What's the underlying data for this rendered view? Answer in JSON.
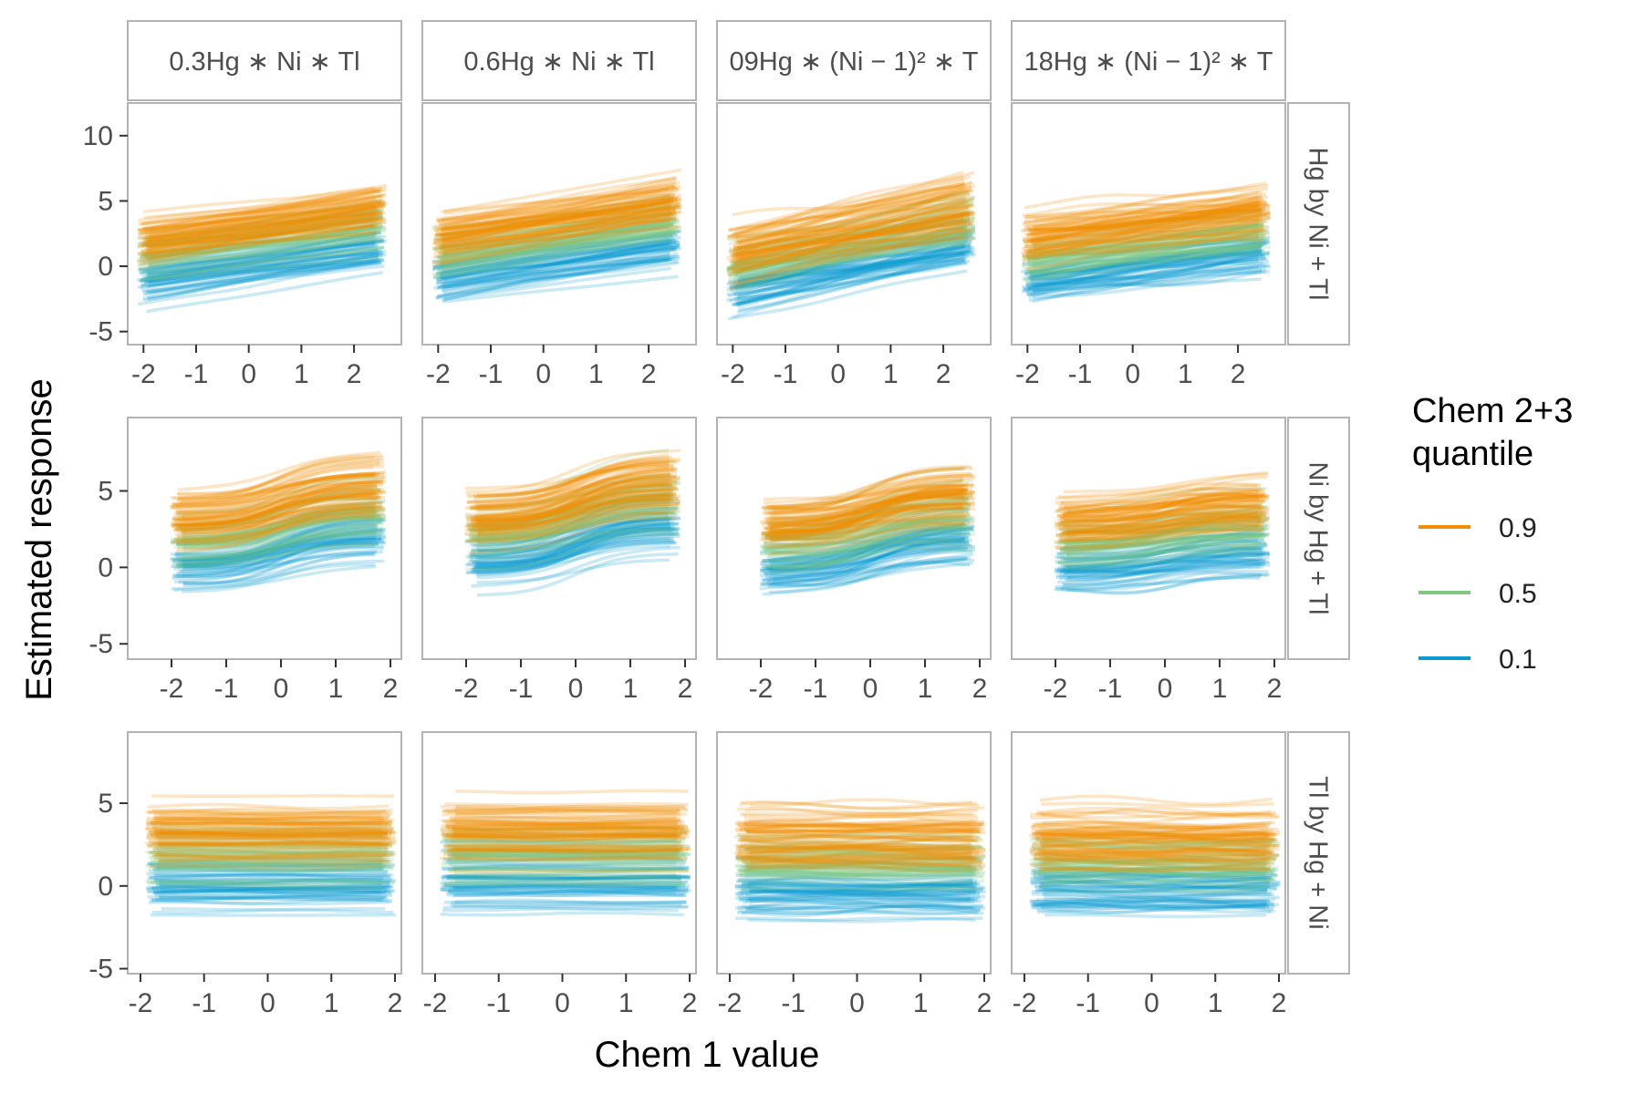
{
  "chart_data": {
    "type": "line",
    "xlabel": "Chem 1 value",
    "ylabel": "Estimated response",
    "column_strips": [
      "0.3Hg ∗ Ni ∗ Tl",
      "0.6Hg ∗ Ni ∗ Tl",
      "09Hg ∗ (Ni − 1)² ∗ T",
      "18Hg ∗ (Ni − 1)² ∗ T"
    ],
    "row_strips": [
      "Hg by Ni + Tl",
      "Ni by Hg + Tl",
      "Tl by Hg + Ni"
    ],
    "legend": {
      "title_lines": [
        "Chem 2+3",
        "quantile"
      ],
      "position": "right",
      "entries": [
        {
          "label": "0.9",
          "color": "#f28e00"
        },
        {
          "label": "0.5",
          "color": "#7ec97e"
        },
        {
          "label": "0.1",
          "color": "#0a9ad1"
        }
      ]
    },
    "rows": [
      {
        "xlim": [
          -2.3,
          2.9
        ],
        "ylim": [
          -6,
          12.5
        ],
        "xticks": [
          -2,
          -1,
          0,
          1,
          2
        ],
        "yticks": [
          -5,
          0,
          5,
          10
        ],
        "x_range": [
          -2.0,
          2.5
        ],
        "slope": [
          0.55,
          0.6,
          0.8,
          0.5
        ],
        "shape": "linear"
      },
      {
        "xlim": [
          -2.8,
          2.2
        ],
        "ylim": [
          -6,
          9.8
        ],
        "xticks": [
          -2,
          -1,
          0,
          1,
          2
        ],
        "yticks": [
          -5,
          0,
          5
        ],
        "x_range": [
          -1.9,
          1.8
        ],
        "slope": [
          0.9,
          1.0,
          0.9,
          0.5
        ],
        "shape": "sigmoid"
      },
      {
        "xlim": [
          -2.2,
          2.1
        ],
        "ylim": [
          -5.3,
          9.3
        ],
        "xticks": [
          -2,
          -1,
          0,
          1,
          2
        ],
        "yticks": [
          -5,
          0,
          5
        ],
        "x_range": [
          -1.8,
          1.9
        ],
        "slope": [
          0.0,
          0.0,
          0.0,
          0.0
        ],
        "shape": "flat"
      }
    ],
    "series": [
      {
        "name": "0.9",
        "color": "#f28e00",
        "center": [
          3.2,
          3.3,
          2.8,
          3.0
        ],
        "spread": 1.3
      },
      {
        "name": "0.5",
        "color": "#7ec97e",
        "center": [
          1.9,
          2.0,
          1.5,
          1.6
        ],
        "spread": 1.2
      },
      {
        "name": "0.1",
        "color": "#0a9ad1",
        "center": [
          0.0,
          0.2,
          -0.4,
          -0.2
        ],
        "spread": 1.2
      }
    ]
  }
}
